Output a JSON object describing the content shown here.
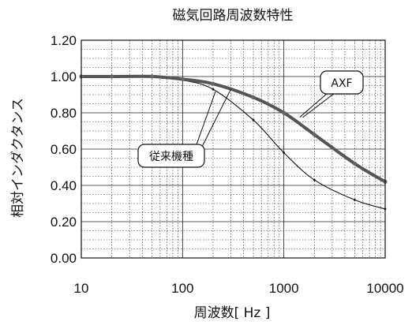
{
  "chart_data": {
    "type": "line",
    "title": "磁気回路周波数特性",
    "xlabel": "周波数[ Hz ]",
    "ylabel": "相対インダクタンス",
    "x_scale": "log",
    "xlim": [
      10,
      10000
    ],
    "ylim": [
      0.0,
      1.2
    ],
    "x_ticks": [
      "10",
      "100",
      "1000",
      "10000"
    ],
    "y_ticks": [
      "0.00",
      "0.20",
      "0.40",
      "0.60",
      "0.80",
      "1.00",
      "1.20"
    ],
    "grid": true,
    "series": [
      {
        "name": "AXF",
        "color": "#555555",
        "x": [
          10,
          20,
          50,
          100,
          200,
          500,
          1000,
          2000,
          5000,
          10000
        ],
        "y": [
          1.0,
          1.0,
          1.0,
          0.985,
          0.96,
          0.885,
          0.8,
          0.68,
          0.52,
          0.42
        ]
      },
      {
        "name": "従来機種",
        "color": "#111111",
        "x": [
          10,
          20,
          50,
          100,
          200,
          500,
          1000,
          2000,
          5000,
          10000
        ],
        "y": [
          1.0,
          1.0,
          1.0,
          0.98,
          0.93,
          0.76,
          0.58,
          0.43,
          0.32,
          0.27
        ]
      }
    ]
  }
}
